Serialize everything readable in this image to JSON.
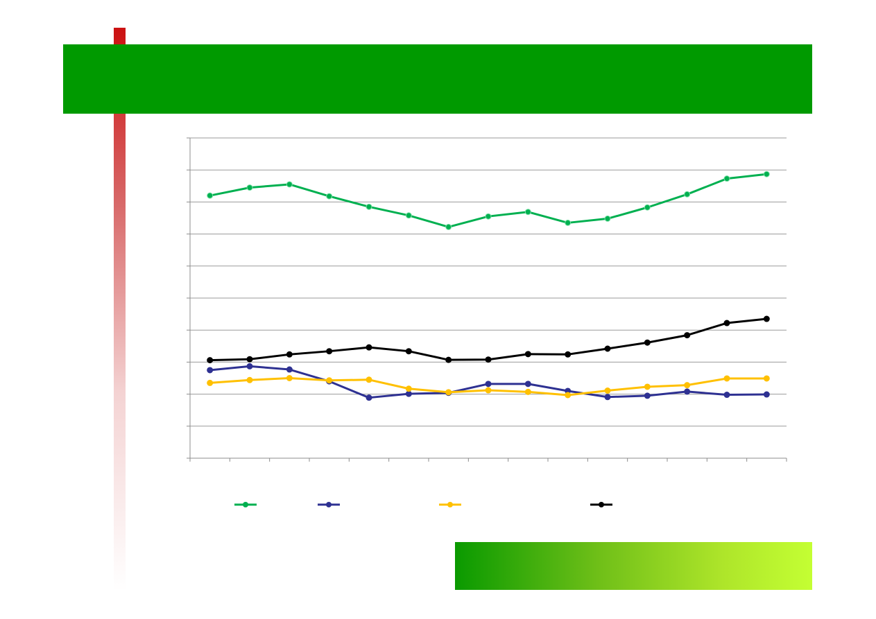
{
  "slide": {
    "title": "",
    "footer_text": "",
    "colors": {
      "title_band": "#009a00",
      "side_bar": "#cc1111",
      "footer_band_start": "#0a9a00",
      "footer_band_end": "#c4ff33"
    }
  },
  "chart_data": {
    "type": "line",
    "title": "",
    "xlabel": "",
    "ylabel": "",
    "ylim": [
      0,
      10
    ],
    "grid": true,
    "legend_position": "bottom",
    "x": [
      1,
      2,
      3,
      4,
      5,
      6,
      7,
      8,
      9,
      10,
      11,
      12,
      13,
      14,
      15
    ],
    "series": [
      {
        "color": "#00b050",
        "values": [
          8.2,
          8.45,
          8.55,
          8.18,
          7.85,
          7.58,
          7.22,
          7.55,
          7.69,
          7.35,
          7.48,
          7.83,
          8.24,
          8.73,
          8.87
        ]
      },
      {
        "color": "#2e3192",
        "values": [
          2.75,
          2.87,
          2.77,
          2.4,
          1.89,
          2.01,
          2.04,
          2.32,
          2.32,
          2.1,
          1.91,
          1.95,
          2.08,
          1.98,
          1.99
        ]
      },
      {
        "color": "#ffc000",
        "values": [
          2.35,
          2.44,
          2.5,
          2.43,
          2.45,
          2.17,
          2.06,
          2.12,
          2.07,
          1.97,
          2.11,
          2.23,
          2.28,
          2.49,
          2.49
        ]
      },
      {
        "color": "#000000",
        "values": [
          3.06,
          3.09,
          3.24,
          3.34,
          3.46,
          3.34,
          3.07,
          3.08,
          3.25,
          3.24,
          3.42,
          3.61,
          3.84,
          4.22,
          4.35
        ]
      }
    ]
  }
}
